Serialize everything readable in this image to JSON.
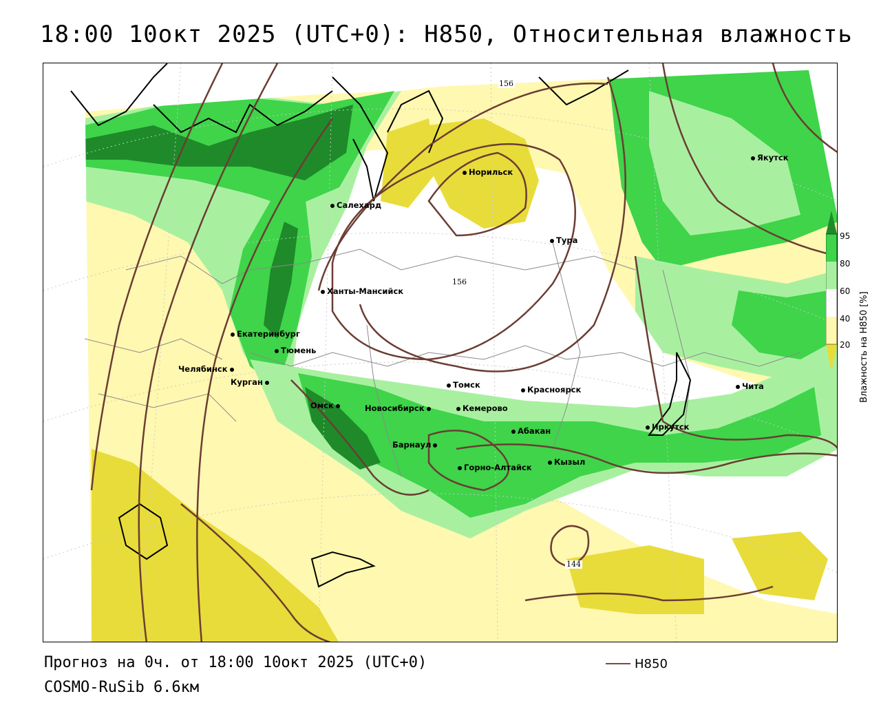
{
  "title": "18:00 10окт 2025 (UTC+0): H850, Относительная влажность",
  "footer": {
    "forecast": "Прогноз на 0ч. от 18:00 10окт 2025 (UTC+0)",
    "model": "COSMO-RuSib 6.6км",
    "legend_label": "H850"
  },
  "colorbar": {
    "title": "Влажность на H850 [%]",
    "ticks": [
      "95",
      "80",
      "60",
      "40",
      "20"
    ],
    "colors": {
      "c95": "#1f8a2a",
      "c80": "#3fd44a",
      "c60": "#a8f0a0",
      "c40": "#ffffff",
      "c20": "#fff8b0",
      "c0": "#e8dc3a"
    }
  },
  "contour_labels": [
    "156",
    "156",
    "144"
  ],
  "cities": [
    {
      "name": "Якутск"
    },
    {
      "name": "Норильск"
    },
    {
      "name": "Салехард"
    },
    {
      "name": "Тура"
    },
    {
      "name": "Ханты-Мансийск"
    },
    {
      "name": "Екатеринбург"
    },
    {
      "name": "Тюмень"
    },
    {
      "name": "Челябинск"
    },
    {
      "name": "Курган"
    },
    {
      "name": "Томск"
    },
    {
      "name": "Красноярск"
    },
    {
      "name": "Омск"
    },
    {
      "name": "Новосибирск"
    },
    {
      "name": "Кемерово"
    },
    {
      "name": "Абакан"
    },
    {
      "name": "Барнаул"
    },
    {
      "name": "Горно-Алтайск"
    },
    {
      "name": "Кызыл"
    },
    {
      "name": "Иркутск"
    },
    {
      "name": "Чита"
    }
  ]
}
